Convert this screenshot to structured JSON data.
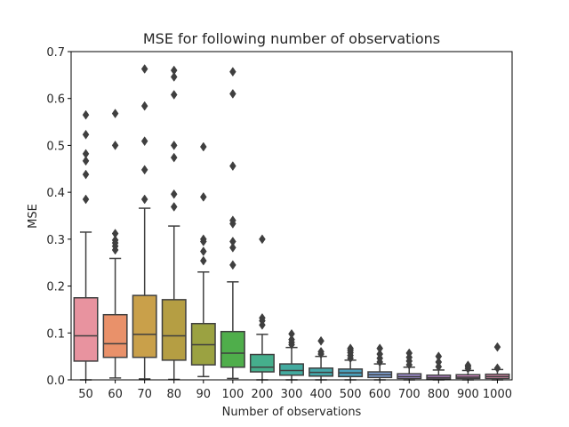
{
  "chart_data": {
    "type": "box",
    "title": "MSE for following number of observations",
    "xlabel": "Number of observations",
    "ylabel": "MSE",
    "ylim": [
      0,
      0.7
    ],
    "yticks": [
      "0.0",
      "0.1",
      "0.2",
      "0.3",
      "0.4",
      "0.5",
      "0.6",
      "0.7"
    ],
    "grid": false,
    "categories": [
      "50",
      "60",
      "70",
      "80",
      "90",
      "100",
      "200",
      "300",
      "400",
      "500",
      "600",
      "700",
      "800",
      "900",
      "1000"
    ],
    "colors": [
      "#e8939f",
      "#e9916a",
      "#c9a04a",
      "#b59e43",
      "#9ba241",
      "#4fae4b",
      "#45ae8c",
      "#43aa9f",
      "#44a7aa",
      "#4aa1bd",
      "#7fa2d6",
      "#a895de",
      "#c58adc",
      "#d88cc8",
      "#e490b2"
    ],
    "boxes": [
      {
        "min": 0.0,
        "q1": 0.04,
        "median": 0.094,
        "q3": 0.175,
        "max": 0.315,
        "outliers": [
          0.385,
          0.438,
          0.467,
          0.482,
          0.523,
          0.565
        ]
      },
      {
        "min": 0.004,
        "q1": 0.048,
        "median": 0.077,
        "q3": 0.139,
        "max": 0.259,
        "outliers": [
          0.277,
          0.285,
          0.292,
          0.298,
          0.312,
          0.5,
          0.568
        ]
      },
      {
        "min": 0.002,
        "q1": 0.048,
        "median": 0.097,
        "q3": 0.18,
        "max": 0.366,
        "outliers": [
          0.385,
          0.448,
          0.509,
          0.584,
          0.663
        ]
      },
      {
        "min": 0.001,
        "q1": 0.042,
        "median": 0.094,
        "q3": 0.171,
        "max": 0.328,
        "outliers": [
          0.369,
          0.396,
          0.474,
          0.5,
          0.608,
          0.646,
          0.66
        ]
      },
      {
        "min": 0.007,
        "q1": 0.032,
        "median": 0.075,
        "q3": 0.12,
        "max": 0.23,
        "outliers": [
          0.254,
          0.274,
          0.295,
          0.3,
          0.39,
          0.497
        ]
      },
      {
        "min": 0.003,
        "q1": 0.027,
        "median": 0.057,
        "q3": 0.103,
        "max": 0.209,
        "outliers": [
          0.245,
          0.282,
          0.295,
          0.333,
          0.34,
          0.456,
          0.61,
          0.657
        ]
      },
      {
        "min": 0.0,
        "q1": 0.017,
        "median": 0.027,
        "q3": 0.054,
        "max": 0.097,
        "outliers": [
          0.117,
          0.126,
          0.132,
          0.3
        ]
      },
      {
        "min": 0.0,
        "q1": 0.01,
        "median": 0.02,
        "q3": 0.034,
        "max": 0.069,
        "outliers": [
          0.075,
          0.08,
          0.086,
          0.098
        ]
      },
      {
        "min": 0.0,
        "q1": 0.008,
        "median": 0.016,
        "q3": 0.025,
        "max": 0.05,
        "outliers": [
          0.055,
          0.06,
          0.083
        ]
      },
      {
        "min": 0.0,
        "q1": 0.007,
        "median": 0.015,
        "q3": 0.023,
        "max": 0.042,
        "outliers": [
          0.046,
          0.052,
          0.058,
          0.063,
          0.067
        ]
      },
      {
        "min": 0.0,
        "q1": 0.005,
        "median": 0.011,
        "q3": 0.017,
        "max": 0.034,
        "outliers": [
          0.038,
          0.046,
          0.055,
          0.067
        ]
      },
      {
        "min": 0.0,
        "q1": 0.003,
        "median": 0.007,
        "q3": 0.013,
        "max": 0.027,
        "outliers": [
          0.032,
          0.04,
          0.048,
          0.057
        ]
      },
      {
        "min": 0.0,
        "q1": 0.002,
        "median": 0.005,
        "q3": 0.01,
        "max": 0.021,
        "outliers": [
          0.028,
          0.038,
          0.05
        ]
      },
      {
        "min": 0.0,
        "q1": 0.003,
        "median": 0.006,
        "q3": 0.011,
        "max": 0.02,
        "outliers": [
          0.024,
          0.028,
          0.031
        ]
      },
      {
        "min": 0.0,
        "q1": 0.003,
        "median": 0.007,
        "q3": 0.012,
        "max": 0.022,
        "outliers": [
          0.025,
          0.07
        ]
      }
    ]
  }
}
